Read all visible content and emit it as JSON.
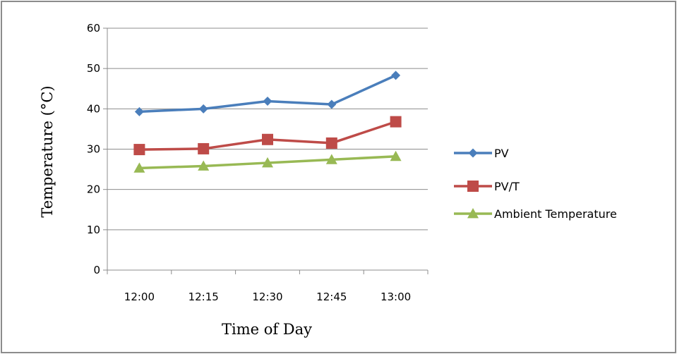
{
  "chart_data": {
    "type": "line",
    "categories": [
      "12:00",
      "12:15",
      "12:30",
      "12:45",
      "13:00"
    ],
    "series": [
      {
        "name": "PV",
        "values": [
          39.3,
          40.0,
          41.9,
          41.1,
          48.3
        ],
        "color": "#4a7ebb",
        "marker": "diamond"
      },
      {
        "name": "PV/T",
        "values": [
          29.9,
          30.1,
          32.4,
          31.5,
          36.8
        ],
        "color": "#be4b48",
        "marker": "square"
      },
      {
        "name": "Ambient Temperature",
        "values": [
          25.3,
          25.8,
          26.6,
          27.4,
          28.2
        ],
        "color": "#98b954",
        "marker": "triangle"
      }
    ],
    "xlabel": "Time of Day",
    "ylabel": "Temperature (°C)",
    "ylim": [
      0,
      60
    ],
    "yticks": [
      0,
      10,
      20,
      30,
      40,
      50,
      60
    ],
    "grid": true,
    "legend": "right"
  }
}
